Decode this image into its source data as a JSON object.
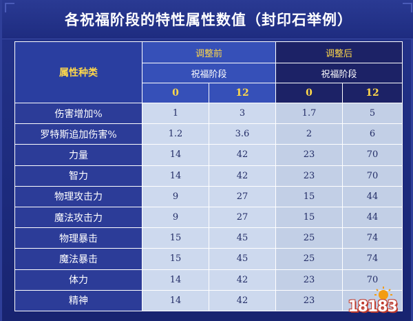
{
  "title": "各祝福阶段的特性属性数值（封印石举例）",
  "header": {
    "attr_type": "属性种类",
    "before": "调整前",
    "after": "调整后",
    "stage_before": "祝福阶段",
    "stage_after": "祝福阶段",
    "levels_before": [
      "0",
      "12"
    ],
    "levels_after": [
      "0",
      "12"
    ]
  },
  "rows": [
    {
      "name": "伤害增加%",
      "values": [
        "1",
        "3",
        "1.7",
        "5"
      ]
    },
    {
      "name": "罗特斯追加伤害%",
      "values": [
        "1.2",
        "3.6",
        "2",
        "6"
      ]
    },
    {
      "name": "力量",
      "values": [
        "14",
        "42",
        "23",
        "70"
      ]
    },
    {
      "name": "智力",
      "values": [
        "14",
        "42",
        "23",
        "70"
      ]
    },
    {
      "name": "物理攻击力",
      "values": [
        "9",
        "27",
        "15",
        "44"
      ]
    },
    {
      "name": "魔法攻击力",
      "values": [
        "9",
        "27",
        "15",
        "44"
      ]
    },
    {
      "name": "物理暴击",
      "values": [
        "15",
        "45",
        "25",
        "74"
      ]
    },
    {
      "name": "魔法暴击",
      "values": [
        "15",
        "45",
        "25",
        "74"
      ]
    },
    {
      "name": "体力",
      "values": [
        "14",
        "42",
        "23",
        "70"
      ]
    },
    {
      "name": "精神",
      "values": [
        "14",
        "42",
        "23",
        ""
      ]
    }
  ],
  "watermark": "18183",
  "colors": {
    "background": "#1c2a7c",
    "header_before": "#3650b8",
    "header_after": "#1c2266",
    "accent": "#ffd84a"
  }
}
